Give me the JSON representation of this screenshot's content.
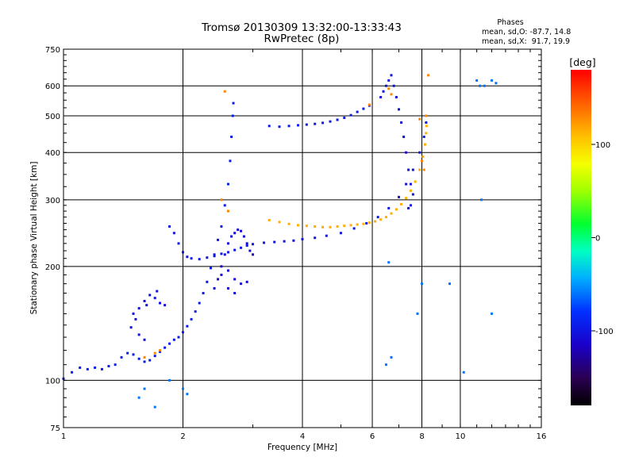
{
  "chart_data": {
    "type": "scatter",
    "title": "Tromsø 20130309 13:32:00-13:33:43",
    "subtitle": "RwPretec (8p)",
    "xlabel": "Frequency [MHz]",
    "ylabel": "Stationary phase Virtual Height [km]",
    "x_scale": "log",
    "y_scale": "log",
    "xlim": [
      1,
      16
    ],
    "ylim": [
      75,
      750
    ],
    "x_ticks": [
      1,
      2,
      4,
      6,
      8,
      10,
      16
    ],
    "x_tick_labels": [
      "1",
      "2",
      "4",
      "6",
      "8",
      "10",
      "16"
    ],
    "x_grid": [
      2,
      4,
      6,
      8,
      10
    ],
    "y_ticks": [
      75,
      100,
      200,
      300,
      400,
      500,
      600,
      750
    ],
    "y_tick_labels": [
      "75",
      "100",
      "200",
      "300",
      "400",
      "500",
      "600",
      "750"
    ],
    "y_grid": [
      100,
      200,
      300,
      400,
      500,
      600
    ],
    "grid": true,
    "stats": {
      "header": "Phases",
      "line_o": "mean, sd,O: -87.7, 14.8",
      "line_x": "mean, sd,X:  91.7, 19.9"
    },
    "colorbar": {
      "label": "[deg]",
      "range": [
        -180,
        180
      ],
      "ticks": [
        100,
        0,
        -100
      ],
      "tick_labels": [
        "100",
        "0",
        "-100"
      ]
    },
    "series": [
      {
        "points": [
          [
            1.0,
            101
          ],
          [
            1.05,
            105
          ],
          [
            1.1,
            108
          ],
          [
            1.15,
            107
          ],
          [
            1.2,
            108
          ],
          [
            1.25,
            107
          ],
          [
            1.3,
            109
          ],
          [
            1.35,
            110
          ],
          [
            1.4,
            115
          ],
          [
            1.45,
            118
          ],
          [
            1.5,
            117
          ],
          [
            1.55,
            114
          ],
          [
            1.6,
            112
          ],
          [
            1.65,
            113
          ],
          [
            1.7,
            116
          ],
          [
            1.75,
            119
          ],
          [
            1.8,
            122
          ],
          [
            1.85,
            125
          ],
          [
            1.9,
            128
          ],
          [
            1.95,
            130
          ],
          [
            2.0,
            134
          ],
          [
            2.05,
            139
          ],
          [
            2.1,
            145
          ],
          [
            2.15,
            152
          ],
          [
            2.2,
            160
          ],
          [
            2.25,
            170
          ],
          [
            2.3,
            182
          ],
          [
            2.35,
            198
          ],
          [
            2.4,
            215
          ],
          [
            2.45,
            235
          ],
          [
            2.5,
            255
          ],
          [
            2.55,
            290
          ],
          [
            2.6,
            330
          ],
          [
            2.63,
            380
          ],
          [
            2.65,
            440
          ],
          [
            2.67,
            500
          ],
          [
            2.68,
            540
          ]
        ],
        "phase": -95
      },
      {
        "points": [
          [
            1.5,
            150
          ],
          [
            1.55,
            155
          ],
          [
            1.6,
            162
          ],
          [
            1.65,
            168
          ],
          [
            1.7,
            165
          ],
          [
            1.75,
            160
          ],
          [
            1.8,
            158
          ],
          [
            1.72,
            172
          ],
          [
            1.62,
            158
          ],
          [
            1.52,
            145
          ],
          [
            1.48,
            138
          ],
          [
            1.55,
            132
          ],
          [
            1.6,
            128
          ]
        ],
        "phase": -105
      },
      {
        "points": [
          [
            1.85,
            255
          ],
          [
            1.9,
            245
          ],
          [
            1.95,
            230
          ],
          [
            2.0,
            218
          ],
          [
            2.05,
            212
          ],
          [
            2.1,
            210
          ],
          [
            2.2,
            209
          ],
          [
            2.3,
            211
          ],
          [
            2.4,
            213
          ],
          [
            2.5,
            216
          ],
          [
            2.6,
            218
          ],
          [
            2.7,
            221
          ],
          [
            2.8,
            224
          ],
          [
            2.9,
            227
          ],
          [
            3.0,
            229
          ],
          [
            3.2,
            231
          ],
          [
            3.4,
            232
          ],
          [
            3.6,
            233
          ],
          [
            3.8,
            234
          ],
          [
            4.0,
            236
          ],
          [
            4.3,
            238
          ],
          [
            4.6,
            241
          ],
          [
            5.0,
            245
          ],
          [
            5.4,
            252
          ],
          [
            5.8,
            260
          ],
          [
            6.2,
            270
          ],
          [
            6.6,
            285
          ],
          [
            7.0,
            305
          ],
          [
            7.3,
            330
          ],
          [
            7.6,
            360
          ],
          [
            7.9,
            400
          ],
          [
            8.1,
            440
          ],
          [
            8.2,
            480
          ]
        ],
        "phase": -100
      },
      {
        "points": [
          [
            2.4,
            175
          ],
          [
            2.45,
            185
          ],
          [
            2.5,
            200
          ],
          [
            2.55,
            215
          ],
          [
            2.6,
            230
          ],
          [
            2.65,
            240
          ],
          [
            2.7,
            245
          ],
          [
            2.75,
            250
          ],
          [
            2.8,
            248
          ],
          [
            2.85,
            240
          ],
          [
            2.9,
            230
          ],
          [
            2.95,
            220
          ],
          [
            3.0,
            215
          ],
          [
            2.5,
            190
          ],
          [
            2.6,
            195
          ],
          [
            2.7,
            185
          ],
          [
            2.8,
            180
          ],
          [
            2.9,
            182
          ],
          [
            2.6,
            175
          ],
          [
            2.7,
            170
          ]
        ],
        "phase": -110
      },
      {
        "points": [
          [
            3.3,
            470
          ],
          [
            3.5,
            468
          ],
          [
            3.7,
            470
          ],
          [
            3.9,
            472
          ],
          [
            4.1,
            474
          ],
          [
            4.3,
            476
          ],
          [
            4.5,
            479
          ],
          [
            4.7,
            483
          ],
          [
            4.9,
            488
          ],
          [
            5.1,
            494
          ],
          [
            5.3,
            502
          ],
          [
            5.5,
            512
          ],
          [
            5.7,
            522
          ],
          [
            5.9,
            532
          ]
        ],
        "phase": -95
      },
      {
        "points": [
          [
            6.3,
            560
          ],
          [
            6.4,
            580
          ],
          [
            6.5,
            600
          ],
          [
            6.6,
            620
          ],
          [
            6.7,
            640
          ],
          [
            6.8,
            600
          ],
          [
            6.9,
            560
          ],
          [
            7.0,
            520
          ],
          [
            7.1,
            480
          ],
          [
            7.2,
            440
          ],
          [
            7.3,
            400
          ],
          [
            7.4,
            360
          ],
          [
            7.5,
            330
          ],
          [
            7.6,
            310
          ],
          [
            7.5,
            290
          ],
          [
            7.4,
            285
          ]
        ],
        "phase": -105
      },
      {
        "points": [
          [
            3.3,
            265
          ],
          [
            3.5,
            262
          ],
          [
            3.7,
            259
          ],
          [
            3.9,
            257
          ],
          [
            4.1,
            256
          ],
          [
            4.3,
            255
          ],
          [
            4.5,
            254
          ],
          [
            4.7,
            254
          ],
          [
            4.9,
            255
          ],
          [
            5.1,
            256
          ],
          [
            5.3,
            257
          ],
          [
            5.5,
            258
          ],
          [
            5.7,
            259
          ],
          [
            5.9,
            261
          ],
          [
            6.1,
            263
          ],
          [
            6.3,
            266
          ],
          [
            6.5,
            270
          ],
          [
            6.7,
            276
          ],
          [
            6.9,
            283
          ],
          [
            7.1,
            292
          ],
          [
            7.3,
            303
          ],
          [
            7.5,
            317
          ],
          [
            7.7,
            335
          ],
          [
            7.9,
            360
          ],
          [
            8.05,
            390
          ],
          [
            8.15,
            420
          ],
          [
            8.2,
            450
          ],
          [
            8.22,
            470
          ]
        ],
        "phase": 115
      },
      {
        "points": [
          [
            1.6,
            115
          ],
          [
            1.7,
            118
          ],
          [
            1.75,
            120
          ],
          [
            2.55,
            580
          ],
          [
            2.5,
            300
          ],
          [
            2.6,
            280
          ],
          [
            5.9,
            535
          ],
          [
            6.6,
            590
          ],
          [
            6.7,
            570
          ],
          [
            8.3,
            640
          ],
          [
            8.2,
            500
          ],
          [
            7.9,
            490
          ],
          [
            8.0,
            380
          ],
          [
            8.1,
            360
          ]
        ],
        "phase": 130
      },
      {
        "points": [
          [
            1.55,
            90
          ],
          [
            1.6,
            95
          ],
          [
            1.7,
            85
          ],
          [
            1.85,
            100
          ],
          [
            2.0,
            95
          ],
          [
            2.05,
            92
          ],
          [
            11.0,
            620
          ],
          [
            11.5,
            600
          ],
          [
            12.0,
            620
          ],
          [
            12.3,
            610
          ],
          [
            11.2,
            600
          ],
          [
            6.6,
            205
          ],
          [
            6.5,
            110
          ],
          [
            6.7,
            115
          ],
          [
            7.8,
            150
          ],
          [
            8.0,
            180
          ],
          [
            9.4,
            180
          ],
          [
            10.2,
            105
          ],
          [
            12.0,
            150
          ],
          [
            11.3,
            300
          ]
        ],
        "phase": -60
      }
    ]
  }
}
